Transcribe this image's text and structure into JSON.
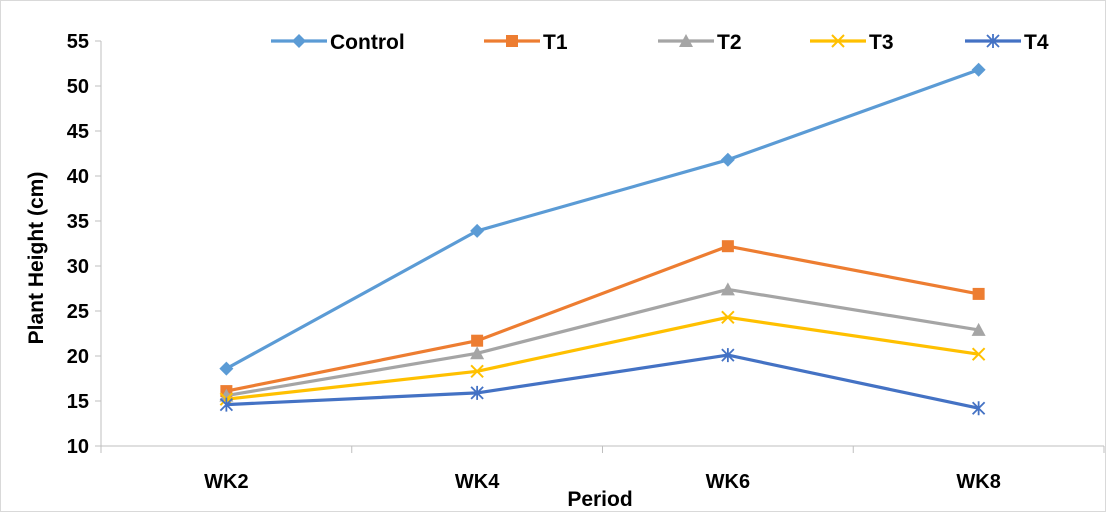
{
  "chart_data": {
    "type": "line",
    "categories": [
      "WK2",
      "WK4",
      "WK6",
      "WK8"
    ],
    "series": [
      {
        "name": "Control",
        "values": [
          18.6,
          33.9,
          41.8,
          51.8
        ],
        "color": "#5B9BD5",
        "marker": "diamond"
      },
      {
        "name": "T1",
        "values": [
          16.1,
          21.7,
          32.2,
          26.9
        ],
        "color": "#ED7D31",
        "marker": "square"
      },
      {
        "name": "T2",
        "values": [
          15.6,
          20.3,
          27.4,
          22.9
        ],
        "color": "#A5A5A5",
        "marker": "triangle"
      },
      {
        "name": "T3",
        "values": [
          15.2,
          18.3,
          24.3,
          20.2
        ],
        "color": "#FFC000",
        "marker": "x"
      },
      {
        "name": "T4",
        "values": [
          14.6,
          15.9,
          20.1,
          14.2
        ],
        "color": "#4472C4",
        "marker": "star"
      }
    ],
    "xlabel": "Period",
    "ylabel": "Plant Height (cm)",
    "ylim": [
      10,
      55
    ],
    "yticks": [
      10,
      15,
      20,
      25,
      30,
      35,
      40,
      45,
      50,
      55
    ],
    "grid": false,
    "legend_position": "top"
  }
}
